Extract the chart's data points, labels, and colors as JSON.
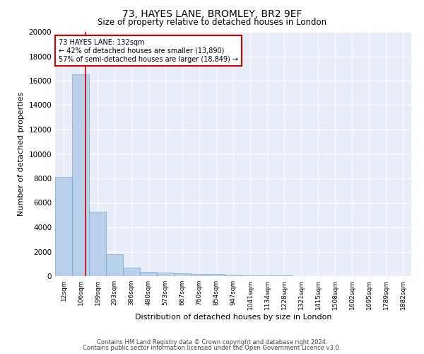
{
  "title1": "73, HAYES LANE, BROMLEY, BR2 9EF",
  "title2": "Size of property relative to detached houses in London",
  "xlabel": "Distribution of detached houses by size in London",
  "ylabel": "Number of detached properties",
  "footer1": "Contains HM Land Registry data © Crown copyright and database right 2024.",
  "footer2": "Contains public sector information licensed under the Open Government Licence v3.0.",
  "annotation_line1": "73 HAYES LANE: 132sqm",
  "annotation_line2": "← 42% of detached houses are smaller (13,890)",
  "annotation_line3": "57% of semi-detached houses are larger (18,849) →",
  "bar_color": "#b8d0ea",
  "bar_edge_color": "#6a9fc0",
  "vline_color": "#cc0000",
  "annotation_box_edge": "#cc0000",
  "background_color": "#e8eef8",
  "grid_color": "#ffffff",
  "categories": [
    "12sqm",
    "106sqm",
    "199sqm",
    "293sqm",
    "386sqm",
    "480sqm",
    "573sqm",
    "667sqm",
    "760sqm",
    "854sqm",
    "947sqm",
    "1041sqm",
    "1134sqm",
    "1228sqm",
    "1321sqm",
    "1415sqm",
    "1508sqm",
    "1602sqm",
    "1695sqm",
    "1789sqm",
    "1882sqm"
  ],
  "values": [
    8100,
    16500,
    5300,
    1800,
    700,
    350,
    280,
    240,
    200,
    150,
    100,
    70,
    50,
    35,
    25,
    18,
    14,
    10,
    8,
    5,
    3
  ],
  "ylim": [
    0,
    20000
  ],
  "yticks": [
    0,
    2000,
    4000,
    6000,
    8000,
    10000,
    12000,
    14000,
    16000,
    18000,
    20000
  ],
  "vline_x_position": 1.28
}
